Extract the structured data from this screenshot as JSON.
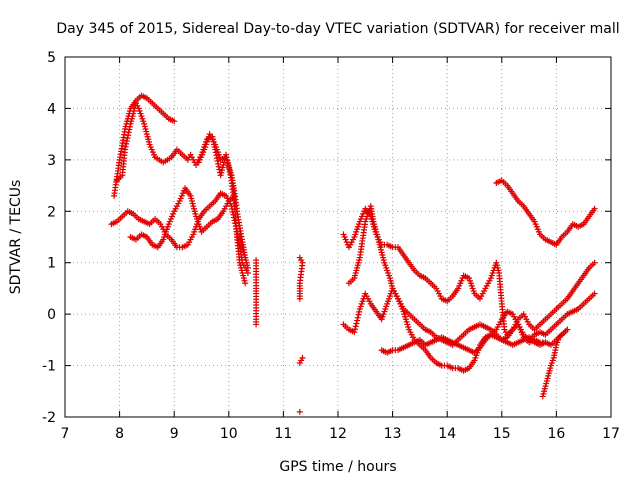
{
  "chart_data": {
    "type": "scatter",
    "title": "Day 345 of 2015, Sidereal Day-to-day VTEC variation (SDTVAR) for receiver mall",
    "xlabel": "GPS time / hours",
    "ylabel": "SDTVAR / TECUs",
    "xlim": [
      7,
      17
    ],
    "ylim": [
      -2,
      5
    ],
    "xticks": [
      "7",
      "8",
      "9",
      "10",
      "11",
      "12",
      "13",
      "14",
      "15",
      "16",
      "17"
    ],
    "yticks": [
      "-2",
      "-1",
      "0",
      "1",
      "2",
      "3",
      "4",
      "5"
    ],
    "grid": true,
    "marker": "+",
    "color": "#e00000",
    "series": [
      {
        "name": "s1",
        "points": [
          [
            7.9,
            2.3
          ],
          [
            8.0,
            3.0
          ],
          [
            8.1,
            3.6
          ],
          [
            8.2,
            4.0
          ],
          [
            8.3,
            4.15
          ],
          [
            8.4,
            4.25
          ],
          [
            8.5,
            4.2
          ],
          [
            8.6,
            4.1
          ],
          [
            8.7,
            4.0
          ],
          [
            8.8,
            3.9
          ],
          [
            8.9,
            3.8
          ],
          [
            9.0,
            3.75
          ]
        ]
      },
      {
        "name": "s2",
        "points": [
          [
            7.95,
            2.6
          ],
          [
            8.05,
            2.7
          ],
          [
            8.1,
            3.2
          ],
          [
            8.2,
            3.7
          ],
          [
            8.3,
            4.1
          ],
          [
            8.35,
            4.0
          ],
          [
            8.45,
            3.7
          ],
          [
            8.55,
            3.3
          ],
          [
            8.65,
            3.05
          ],
          [
            8.8,
            2.95
          ],
          [
            8.95,
            3.05
          ],
          [
            9.05,
            3.2
          ],
          [
            9.15,
            3.1
          ],
          [
            9.25,
            3.0
          ],
          [
            9.3,
            3.1
          ],
          [
            9.4,
            2.9
          ],
          [
            9.5,
            3.1
          ],
          [
            9.6,
            3.4
          ],
          [
            9.7,
            3.45
          ],
          [
            9.75,
            3.2
          ],
          [
            9.85,
            2.7
          ],
          [
            9.95,
            3.1
          ],
          [
            10.05,
            2.6
          ],
          [
            10.1,
            2.2
          ],
          [
            10.15,
            1.5
          ],
          [
            10.2,
            1.0
          ],
          [
            10.3,
            0.6
          ]
        ]
      },
      {
        "name": "s3",
        "points": [
          [
            7.85,
            1.75
          ],
          [
            7.95,
            1.8
          ],
          [
            8.05,
            1.9
          ],
          [
            8.15,
            2.0
          ],
          [
            8.25,
            1.95
          ],
          [
            8.35,
            1.85
          ],
          [
            8.45,
            1.8
          ],
          [
            8.55,
            1.75
          ],
          [
            8.65,
            1.85
          ],
          [
            8.75,
            1.75
          ],
          [
            8.85,
            1.55
          ],
          [
            8.95,
            1.45
          ],
          [
            9.05,
            1.3
          ],
          [
            9.15,
            1.3
          ],
          [
            9.25,
            1.35
          ],
          [
            9.35,
            1.55
          ],
          [
            9.45,
            1.85
          ],
          [
            9.55,
            2.0
          ],
          [
            9.65,
            2.1
          ],
          [
            9.75,
            2.2
          ],
          [
            9.85,
            2.35
          ],
          [
            9.95,
            2.3
          ],
          [
            10.05,
            2.1
          ],
          [
            10.15,
            1.6
          ],
          [
            10.25,
            1.0
          ],
          [
            10.35,
            0.8
          ]
        ]
      },
      {
        "name": "s4",
        "points": [
          [
            8.2,
            1.5
          ],
          [
            8.3,
            1.45
          ],
          [
            8.4,
            1.55
          ],
          [
            8.5,
            1.5
          ],
          [
            8.6,
            1.35
          ],
          [
            8.7,
            1.3
          ],
          [
            8.8,
            1.45
          ],
          [
            8.9,
            1.75
          ],
          [
            9.0,
            2.0
          ],
          [
            9.1,
            2.2
          ],
          [
            9.2,
            2.45
          ],
          [
            9.3,
            2.3
          ],
          [
            9.4,
            1.9
          ],
          [
            9.5,
            1.6
          ],
          [
            9.6,
            1.7
          ],
          [
            9.7,
            1.8
          ],
          [
            9.8,
            1.85
          ],
          [
            9.9,
            2.0
          ],
          [
            10.0,
            2.2
          ],
          [
            10.1,
            2.3
          ],
          [
            10.2,
            1.5
          ],
          [
            10.3,
            1.1
          ],
          [
            10.35,
            0.9
          ]
        ]
      },
      {
        "name": "s5",
        "points": [
          [
            9.45,
            2.95
          ],
          [
            9.55,
            3.2
          ],
          [
            9.65,
            3.5
          ],
          [
            9.75,
            3.3
          ],
          [
            9.85,
            3.0
          ],
          [
            9.95,
            3.05
          ],
          [
            10.05,
            2.7
          ],
          [
            10.1,
            2.4
          ],
          [
            10.15,
            2.0
          ],
          [
            10.25,
            1.4
          ],
          [
            10.3,
            1.1
          ]
        ]
      },
      {
        "name": "s6",
        "points": [
          [
            10.5,
            1.05
          ],
          [
            10.5,
            0.5
          ],
          [
            10.5,
            0.4
          ],
          [
            10.5,
            -0.1
          ],
          [
            10.5,
            -0.2
          ]
        ]
      },
      {
        "name": "s7",
        "points": [
          [
            11.3,
            1.1
          ],
          [
            11.35,
            1.0
          ],
          [
            11.3,
            0.6
          ],
          [
            11.3,
            0.5
          ],
          [
            11.3,
            0.3
          ],
          [
            11.35,
            -0.85
          ],
          [
            11.3,
            -0.95
          ],
          [
            11.3,
            -1.9
          ]
        ]
      },
      {
        "name": "s8",
        "points": [
          [
            12.1,
            1.55
          ],
          [
            12.2,
            1.3
          ],
          [
            12.3,
            1.5
          ],
          [
            12.4,
            1.8
          ],
          [
            12.5,
            2.05
          ],
          [
            12.6,
            1.9
          ],
          [
            12.7,
            1.55
          ],
          [
            12.8,
            1.35
          ],
          [
            12.9,
            1.35
          ],
          [
            13.0,
            1.3
          ],
          [
            13.1,
            1.3
          ],
          [
            13.2,
            1.15
          ],
          [
            13.3,
            1.0
          ],
          [
            13.4,
            0.85
          ],
          [
            13.5,
            0.75
          ],
          [
            13.6,
            0.7
          ],
          [
            13.7,
            0.6
          ],
          [
            13.8,
            0.5
          ],
          [
            13.9,
            0.3
          ],
          [
            14.0,
            0.25
          ],
          [
            14.1,
            0.35
          ],
          [
            14.2,
            0.5
          ],
          [
            14.3,
            0.75
          ],
          [
            14.4,
            0.7
          ],
          [
            14.5,
            0.4
          ],
          [
            14.6,
            0.3
          ],
          [
            14.7,
            0.5
          ],
          [
            14.8,
            0.7
          ],
          [
            14.9,
            1.0
          ],
          [
            14.95,
            0.8
          ],
          [
            15.0,
            0.2
          ],
          [
            15.05,
            -0.3
          ],
          [
            15.1,
            -0.4
          ],
          [
            15.2,
            -0.3
          ],
          [
            15.3,
            -0.2
          ],
          [
            15.4,
            -0.4
          ],
          [
            15.5,
            -0.5
          ],
          [
            15.6,
            -0.4
          ],
          [
            15.7,
            -0.35
          ],
          [
            15.8,
            -0.4
          ],
          [
            15.9,
            -0.3
          ],
          [
            16.0,
            -0.2
          ],
          [
            16.1,
            -0.1
          ],
          [
            16.2,
            0.0
          ],
          [
            16.3,
            0.05
          ],
          [
            16.4,
            0.1
          ],
          [
            16.5,
            0.2
          ],
          [
            16.6,
            0.3
          ],
          [
            16.7,
            0.4
          ]
        ]
      },
      {
        "name": "s9",
        "points": [
          [
            12.2,
            0.6
          ],
          [
            12.3,
            0.7
          ],
          [
            12.4,
            1.1
          ],
          [
            12.5,
            1.8
          ],
          [
            12.6,
            2.1
          ],
          [
            12.65,
            1.8
          ],
          [
            12.75,
            1.4
          ],
          [
            12.85,
            1.0
          ],
          [
            12.95,
            0.7
          ],
          [
            13.0,
            0.5
          ],
          [
            13.1,
            0.3
          ],
          [
            13.2,
            0.1
          ],
          [
            13.3,
            0.0
          ],
          [
            13.4,
            -0.1
          ],
          [
            13.5,
            -0.2
          ],
          [
            13.6,
            -0.3
          ],
          [
            13.7,
            -0.35
          ],
          [
            13.8,
            -0.45
          ],
          [
            13.9,
            -0.5
          ],
          [
            14.0,
            -0.55
          ],
          [
            14.1,
            -0.6
          ],
          [
            14.2,
            -0.5
          ],
          [
            14.3,
            -0.4
          ],
          [
            14.4,
            -0.3
          ],
          [
            14.5,
            -0.25
          ],
          [
            14.6,
            -0.2
          ],
          [
            14.7,
            -0.25
          ],
          [
            14.8,
            -0.3
          ],
          [
            14.9,
            -0.4
          ],
          [
            15.0,
            -0.5
          ],
          [
            15.1,
            -0.45
          ],
          [
            15.2,
            -0.3
          ],
          [
            15.3,
            -0.1
          ],
          [
            15.4,
            0.0
          ],
          [
            15.5,
            -0.2
          ],
          [
            15.6,
            -0.3
          ],
          [
            15.7,
            -0.2
          ],
          [
            15.8,
            -0.1
          ],
          [
            15.9,
            0.0
          ],
          [
            16.0,
            0.1
          ],
          [
            16.1,
            0.2
          ],
          [
            16.2,
            0.3
          ],
          [
            16.3,
            0.45
          ],
          [
            16.4,
            0.6
          ],
          [
            16.5,
            0.75
          ],
          [
            16.6,
            0.9
          ],
          [
            16.7,
            1.0
          ]
        ]
      },
      {
        "name": "s10",
        "points": [
          [
            12.1,
            -0.2
          ],
          [
            12.2,
            -0.3
          ],
          [
            12.3,
            -0.35
          ],
          [
            12.4,
            0.1
          ],
          [
            12.5,
            0.4
          ],
          [
            12.6,
            0.2
          ],
          [
            12.7,
            0.05
          ],
          [
            12.8,
            -0.1
          ],
          [
            12.9,
            0.2
          ],
          [
            13.0,
            0.5
          ],
          [
            13.1,
            0.3
          ],
          [
            13.2,
            0.05
          ],
          [
            13.3,
            -0.3
          ],
          [
            13.4,
            -0.5
          ],
          [
            13.5,
            -0.6
          ],
          [
            13.6,
            -0.7
          ],
          [
            13.7,
            -0.85
          ],
          [
            13.8,
            -0.95
          ],
          [
            13.9,
            -1.0
          ],
          [
            14.0,
            -1.0
          ],
          [
            14.1,
            -1.05
          ],
          [
            14.2,
            -1.05
          ],
          [
            14.3,
            -1.1
          ],
          [
            14.4,
            -1.05
          ],
          [
            14.5,
            -0.9
          ],
          [
            14.6,
            -0.6
          ],
          [
            14.7,
            -0.45
          ],
          [
            14.8,
            -0.4
          ],
          [
            14.9,
            -0.3
          ],
          [
            15.0,
            -0.1
          ],
          [
            15.1,
            0.05
          ],
          [
            15.2,
            0.0
          ],
          [
            15.3,
            -0.2
          ],
          [
            15.4,
            -0.45
          ],
          [
            15.5,
            -0.55
          ],
          [
            15.6,
            -0.5
          ],
          [
            15.7,
            -0.55
          ],
          [
            15.8,
            -0.55
          ],
          [
            15.9,
            -0.6
          ],
          [
            16.0,
            -0.5
          ],
          [
            16.1,
            -0.4
          ],
          [
            16.2,
            -0.3
          ]
        ]
      },
      {
        "name": "s11",
        "points": [
          [
            12.8,
            -0.7
          ],
          [
            12.9,
            -0.75
          ],
          [
            13.0,
            -0.7
          ],
          [
            13.1,
            -0.7
          ],
          [
            13.2,
            -0.65
          ],
          [
            13.3,
            -0.6
          ],
          [
            13.4,
            -0.55
          ],
          [
            13.5,
            -0.5
          ],
          [
            13.6,
            -0.6
          ],
          [
            13.7,
            -0.55
          ],
          [
            13.8,
            -0.5
          ],
          [
            13.9,
            -0.45
          ],
          [
            14.0,
            -0.5
          ],
          [
            14.1,
            -0.55
          ],
          [
            14.2,
            -0.6
          ],
          [
            14.3,
            -0.65
          ],
          [
            14.4,
            -0.7
          ],
          [
            14.5,
            -0.75
          ],
          [
            14.6,
            -0.65
          ],
          [
            14.7,
            -0.5
          ],
          [
            14.8,
            -0.4
          ],
          [
            14.9,
            -0.45
          ],
          [
            15.0,
            -0.5
          ],
          [
            15.1,
            -0.55
          ],
          [
            15.2,
            -0.6
          ],
          [
            15.3,
            -0.55
          ],
          [
            15.4,
            -0.5
          ],
          [
            15.5,
            -0.45
          ],
          [
            15.6,
            -0.55
          ],
          [
            15.7,
            -0.6
          ],
          [
            15.8,
            -0.55
          ]
        ]
      },
      {
        "name": "s12",
        "points": [
          [
            14.9,
            2.55
          ],
          [
            15.0,
            2.6
          ],
          [
            15.1,
            2.5
          ],
          [
            15.2,
            2.35
          ],
          [
            15.3,
            2.2
          ],
          [
            15.4,
            2.1
          ],
          [
            15.5,
            1.95
          ],
          [
            15.6,
            1.8
          ],
          [
            15.7,
            1.55
          ],
          [
            15.8,
            1.45
          ],
          [
            15.9,
            1.4
          ],
          [
            16.0,
            1.35
          ],
          [
            16.1,
            1.5
          ],
          [
            16.2,
            1.6
          ],
          [
            16.3,
            1.75
          ],
          [
            16.4,
            1.7
          ],
          [
            16.5,
            1.75
          ],
          [
            16.6,
            1.9
          ],
          [
            16.7,
            2.05
          ]
        ]
      },
      {
        "name": "s13",
        "points": [
          [
            15.75,
            -1.6
          ],
          [
            15.8,
            -1.4
          ],
          [
            15.85,
            -1.2
          ],
          [
            15.9,
            -1.0
          ],
          [
            15.95,
            -0.85
          ],
          [
            16.0,
            -0.6
          ],
          [
            16.05,
            -0.45
          ],
          [
            16.1,
            -0.4
          ],
          [
            16.2,
            -0.3
          ]
        ]
      }
    ]
  }
}
